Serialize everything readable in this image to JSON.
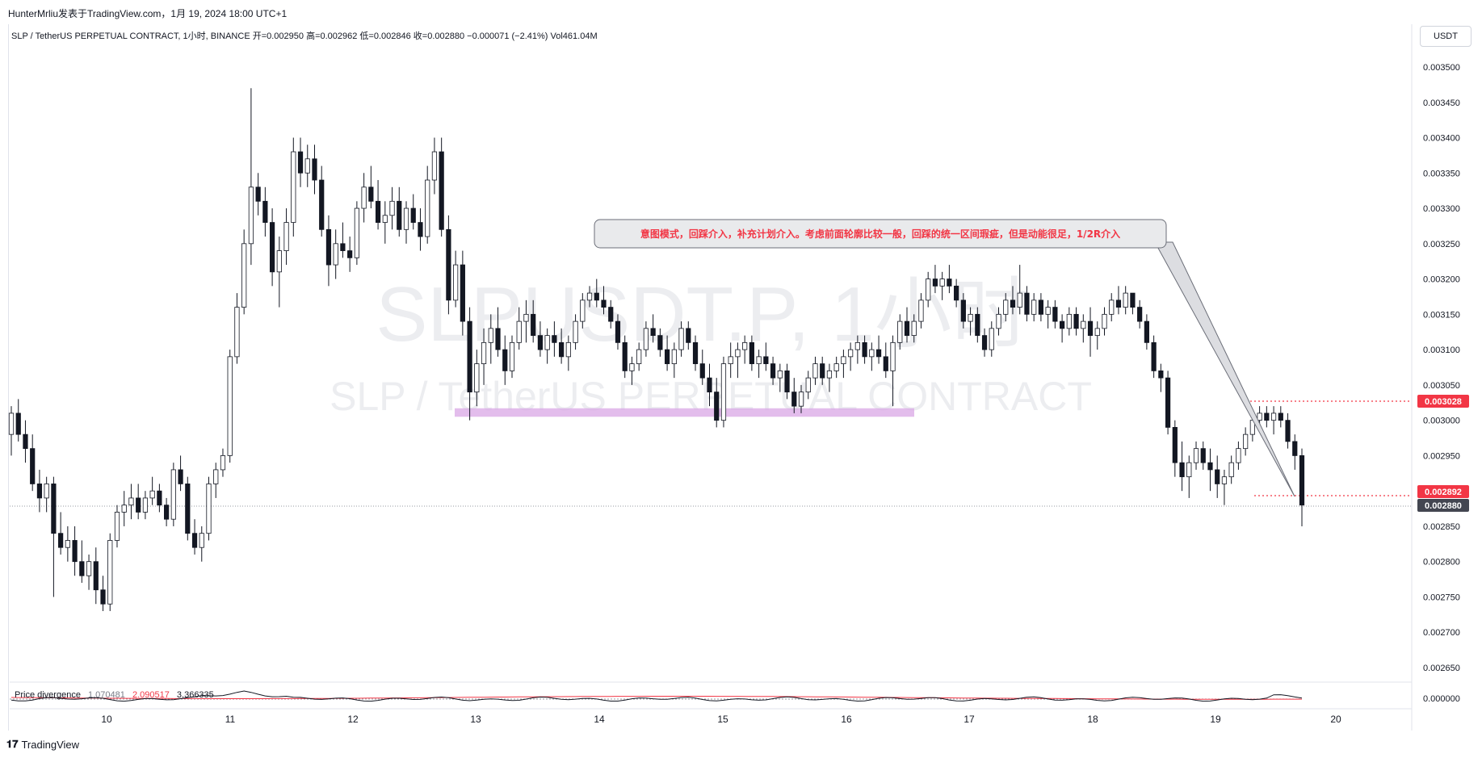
{
  "publisher": "HunterMrliu发表于TradingView.com，1月 19, 2024 18:00 UTC+1",
  "infobar": "SLP / TetherUS PERPETUAL CONTRACT, 1小时, BINANCE  开=0.002950  高=0.002962  低=0.002846  收=0.002880  −0.000071 (−2.41%)  Vol461.04M",
  "unit_button": "USDT",
  "watermark": {
    "line1": "SLPUSDT.P, 1小时",
    "line2": "SLP / TetherUS PERPETUAL CONTRACT"
  },
  "annotation": "意图模式，回踩介入，补充计划介入。考虑前面轮廓比较一般，回踩的统一区间瑕疵，但是动能很足，1/2R介入",
  "price_labels": {
    "resistance": "0.003028",
    "stop": "0.002892",
    "last": "0.002880"
  },
  "indicator": {
    "name": "Price divergence",
    "v1": "1.070481",
    "v2": "2.090517",
    "v3": "3.366335",
    "axis_label": "0.000000"
  },
  "footer": {
    "logo": "TradingView"
  },
  "colors": {
    "up": "#ffffff",
    "down": "#131722",
    "zone": "#d9a7e6",
    "red": "#f23645",
    "callout_fill": "#e9eaec"
  },
  "chart_data": {
    "type": "candlestick",
    "y_ticks": [
      "0.003500",
      "0.003450",
      "0.003400",
      "0.003350",
      "0.003300",
      "0.003250",
      "0.003200",
      "0.003150",
      "0.003100",
      "0.003050",
      "0.003000",
      "0.002950",
      "0.002900",
      "0.002850",
      "0.002800",
      "0.002750",
      "0.002700",
      "0.002650"
    ],
    "ylim": [
      0.00262,
      0.00355
    ],
    "x_ticks": [
      "10",
      "11",
      "12",
      "13",
      "14",
      "15",
      "16",
      "17",
      "18",
      "19",
      "20"
    ],
    "zone": [
      0.003005,
      0.003017
    ],
    "candles": [
      [
        0.00298,
        0.00302,
        0.00295,
        0.00301
      ],
      [
        0.00301,
        0.00303,
        0.00297,
        0.00298
      ],
      [
        0.00298,
        0.003,
        0.00294,
        0.00296
      ],
      [
        0.00296,
        0.00298,
        0.0029,
        0.00291
      ],
      [
        0.00291,
        0.00293,
        0.00287,
        0.00289
      ],
      [
        0.00289,
        0.00292,
        0.00287,
        0.00291
      ],
      [
        0.00291,
        0.00292,
        0.00275,
        0.00284
      ],
      [
        0.00284,
        0.00287,
        0.00281,
        0.00282
      ],
      [
        0.00282,
        0.00285,
        0.0028,
        0.00283
      ],
      [
        0.00283,
        0.00285,
        0.00278,
        0.0028
      ],
      [
        0.0028,
        0.00283,
        0.00277,
        0.00278
      ],
      [
        0.00278,
        0.00281,
        0.00276,
        0.0028
      ],
      [
        0.0028,
        0.00282,
        0.00274,
        0.00276
      ],
      [
        0.00276,
        0.00278,
        0.00273,
        0.00274
      ],
      [
        0.00274,
        0.00284,
        0.00273,
        0.00283
      ],
      [
        0.00283,
        0.00288,
        0.00282,
        0.00287
      ],
      [
        0.00287,
        0.0029,
        0.00285,
        0.00288
      ],
      [
        0.00288,
        0.00291,
        0.00286,
        0.00289
      ],
      [
        0.00289,
        0.00291,
        0.00286,
        0.00287
      ],
      [
        0.00287,
        0.0029,
        0.00286,
        0.00289
      ],
      [
        0.00289,
        0.00292,
        0.00288,
        0.0029
      ],
      [
        0.0029,
        0.00291,
        0.00287,
        0.00288
      ],
      [
        0.00288,
        0.00289,
        0.00285,
        0.00286
      ],
      [
        0.00286,
        0.00294,
        0.00285,
        0.00293
      ],
      [
        0.00293,
        0.00295,
        0.0029,
        0.00291
      ],
      [
        0.00291,
        0.00292,
        0.00283,
        0.00284
      ],
      [
        0.00284,
        0.00286,
        0.00281,
        0.00282
      ],
      [
        0.00282,
        0.00285,
        0.0028,
        0.00284
      ],
      [
        0.00284,
        0.00292,
        0.00283,
        0.00291
      ],
      [
        0.00291,
        0.00294,
        0.00289,
        0.00293
      ],
      [
        0.00293,
        0.00296,
        0.00292,
        0.00295
      ],
      [
        0.00295,
        0.0031,
        0.00294,
        0.00309
      ],
      [
        0.00309,
        0.00318,
        0.00308,
        0.00316
      ],
      [
        0.00316,
        0.00327,
        0.00315,
        0.00325
      ],
      [
        0.00325,
        0.00347,
        0.00322,
        0.00333
      ],
      [
        0.00333,
        0.00335,
        0.00329,
        0.00331
      ],
      [
        0.00331,
        0.00333,
        0.00326,
        0.00328
      ],
      [
        0.00328,
        0.0033,
        0.00319,
        0.00321
      ],
      [
        0.00321,
        0.00326,
        0.00316,
        0.00324
      ],
      [
        0.00324,
        0.0033,
        0.00322,
        0.00328
      ],
      [
        0.00328,
        0.0034,
        0.00326,
        0.00338
      ],
      [
        0.00338,
        0.0034,
        0.00333,
        0.00335
      ],
      [
        0.00335,
        0.00339,
        0.00333,
        0.00337
      ],
      [
        0.00337,
        0.00339,
        0.00332,
        0.00334
      ],
      [
        0.00334,
        0.00336,
        0.00326,
        0.00327
      ],
      [
        0.00327,
        0.00329,
        0.00319,
        0.00322
      ],
      [
        0.00322,
        0.00327,
        0.0032,
        0.00325
      ],
      [
        0.00325,
        0.00328,
        0.00323,
        0.00324
      ],
      [
        0.00324,
        0.00326,
        0.00321,
        0.00323
      ],
      [
        0.00323,
        0.00331,
        0.00322,
        0.0033
      ],
      [
        0.0033,
        0.00335,
        0.00328,
        0.00333
      ],
      [
        0.00333,
        0.00336,
        0.0033,
        0.00331
      ],
      [
        0.00331,
        0.00334,
        0.00327,
        0.00328
      ],
      [
        0.00328,
        0.00331,
        0.00325,
        0.00329
      ],
      [
        0.00329,
        0.00333,
        0.00327,
        0.00331
      ],
      [
        0.00331,
        0.00333,
        0.00326,
        0.00327
      ],
      [
        0.00327,
        0.00331,
        0.00325,
        0.0033
      ],
      [
        0.0033,
        0.00332,
        0.00327,
        0.00328
      ],
      [
        0.00328,
        0.0033,
        0.00324,
        0.00326
      ],
      [
        0.00326,
        0.00336,
        0.00325,
        0.00334
      ],
      [
        0.00334,
        0.0034,
        0.00332,
        0.00338
      ],
      [
        0.00338,
        0.0034,
        0.00326,
        0.00327
      ],
      [
        0.00327,
        0.00329,
        0.00315,
        0.00317
      ],
      [
        0.00317,
        0.00324,
        0.00316,
        0.00322
      ],
      [
        0.00322,
        0.00324,
        0.00312,
        0.00314
      ],
      [
        0.00314,
        0.00316,
        0.003,
        0.00304
      ],
      [
        0.00304,
        0.0031,
        0.00302,
        0.00308
      ],
      [
        0.00308,
        0.00313,
        0.00305,
        0.00311
      ],
      [
        0.00311,
        0.00315,
        0.00308,
        0.00313
      ],
      [
        0.00313,
        0.00316,
        0.00309,
        0.0031
      ],
      [
        0.0031,
        0.00312,
        0.00305,
        0.00307
      ],
      [
        0.00307,
        0.00312,
        0.00306,
        0.00311
      ],
      [
        0.00311,
        0.00316,
        0.0031,
        0.00314
      ],
      [
        0.00314,
        0.00317,
        0.00311,
        0.00315
      ],
      [
        0.00315,
        0.00317,
        0.00311,
        0.00312
      ],
      [
        0.00312,
        0.00314,
        0.00309,
        0.0031
      ],
      [
        0.0031,
        0.00313,
        0.00308,
        0.00312
      ],
      [
        0.00312,
        0.00314,
        0.00309,
        0.00311
      ],
      [
        0.00311,
        0.00313,
        0.00308,
        0.00309
      ],
      [
        0.00309,
        0.00312,
        0.00307,
        0.00311
      ],
      [
        0.00311,
        0.00315,
        0.0031,
        0.00314
      ],
      [
        0.00314,
        0.00318,
        0.00313,
        0.00317
      ],
      [
        0.00317,
        0.00319,
        0.00316,
        0.00318
      ],
      [
        0.00318,
        0.0032,
        0.00316,
        0.00317
      ],
      [
        0.00317,
        0.00319,
        0.00315,
        0.00316
      ],
      [
        0.00316,
        0.00317,
        0.00313,
        0.00314
      ],
      [
        0.00314,
        0.00315,
        0.0031,
        0.00311
      ],
      [
        0.00311,
        0.00312,
        0.00306,
        0.00307
      ],
      [
        0.00307,
        0.00309,
        0.00305,
        0.00308
      ],
      [
        0.00308,
        0.00311,
        0.00307,
        0.0031
      ],
      [
        0.0031,
        0.00314,
        0.00309,
        0.00313
      ],
      [
        0.00313,
        0.00315,
        0.00311,
        0.00312
      ],
      [
        0.00312,
        0.00313,
        0.00309,
        0.0031
      ],
      [
        0.0031,
        0.00312,
        0.00307,
        0.00308
      ],
      [
        0.00308,
        0.00311,
        0.00306,
        0.0031
      ],
      [
        0.0031,
        0.00314,
        0.00309,
        0.00313
      ],
      [
        0.00313,
        0.00314,
        0.0031,
        0.00311
      ],
      [
        0.00311,
        0.00312,
        0.00307,
        0.00308
      ],
      [
        0.00308,
        0.0031,
        0.00305,
        0.00306
      ],
      [
        0.00306,
        0.00308,
        0.00302,
        0.00304
      ],
      [
        0.00304,
        0.00306,
        0.00299,
        0.003
      ],
      [
        0.003,
        0.00309,
        0.00299,
        0.00308
      ],
      [
        0.00308,
        0.00311,
        0.00306,
        0.00309
      ],
      [
        0.00309,
        0.00311,
        0.00306,
        0.0031
      ],
      [
        0.0031,
        0.00312,
        0.00308,
        0.00311
      ],
      [
        0.00311,
        0.00312,
        0.00307,
        0.00308
      ],
      [
        0.00308,
        0.0031,
        0.00306,
        0.00309
      ],
      [
        0.00309,
        0.00311,
        0.00307,
        0.00308
      ],
      [
        0.00308,
        0.00309,
        0.00305,
        0.00306
      ],
      [
        0.00306,
        0.00308,
        0.00304,
        0.00307
      ],
      [
        0.00307,
        0.00308,
        0.00303,
        0.00304
      ],
      [
        0.00304,
        0.00306,
        0.00301,
        0.00302
      ],
      [
        0.00302,
        0.00305,
        0.00301,
        0.00304
      ],
      [
        0.00304,
        0.00307,
        0.00303,
        0.00306
      ],
      [
        0.00306,
        0.00309,
        0.00305,
        0.00308
      ],
      [
        0.00308,
        0.00309,
        0.00305,
        0.00306
      ],
      [
        0.00306,
        0.00308,
        0.00304,
        0.00307
      ],
      [
        0.00307,
        0.00309,
        0.00306,
        0.00308
      ],
      [
        0.00308,
        0.0031,
        0.00306,
        0.00309
      ],
      [
        0.00309,
        0.00311,
        0.00307,
        0.0031
      ],
      [
        0.0031,
        0.00312,
        0.00308,
        0.00311
      ],
      [
        0.00311,
        0.00312,
        0.00308,
        0.00309
      ],
      [
        0.00309,
        0.00311,
        0.00307,
        0.0031
      ],
      [
        0.0031,
        0.00312,
        0.00308,
        0.00309
      ],
      [
        0.00309,
        0.00311,
        0.00306,
        0.00307
      ],
      [
        0.00307,
        0.00312,
        0.00302,
        0.00311
      ],
      [
        0.00311,
        0.00315,
        0.0031,
        0.00314
      ],
      [
        0.00314,
        0.00316,
        0.00311,
        0.00312
      ],
      [
        0.00312,
        0.00315,
        0.00311,
        0.00314
      ],
      [
        0.00314,
        0.00318,
        0.00313,
        0.00317
      ],
      [
        0.00317,
        0.00321,
        0.00316,
        0.0032
      ],
      [
        0.0032,
        0.00322,
        0.00318,
        0.00319
      ],
      [
        0.00319,
        0.00321,
        0.00317,
        0.0032
      ],
      [
        0.0032,
        0.00322,
        0.00318,
        0.00319
      ],
      [
        0.00319,
        0.0032,
        0.00316,
        0.00317
      ],
      [
        0.00317,
        0.00318,
        0.00313,
        0.00314
      ],
      [
        0.00314,
        0.00316,
        0.00312,
        0.00315
      ],
      [
        0.00315,
        0.00316,
        0.00311,
        0.00312
      ],
      [
        0.00312,
        0.00313,
        0.00309,
        0.0031
      ],
      [
        0.0031,
        0.00314,
        0.00309,
        0.00313
      ],
      [
        0.00313,
        0.00316,
        0.00312,
        0.00315
      ],
      [
        0.00315,
        0.00318,
        0.00314,
        0.00317
      ],
      [
        0.00317,
        0.00319,
        0.00315,
        0.00316
      ],
      [
        0.00316,
        0.00322,
        0.00315,
        0.00318
      ],
      [
        0.00318,
        0.00319,
        0.00314,
        0.00315
      ],
      [
        0.00315,
        0.00318,
        0.00314,
        0.00317
      ],
      [
        0.00317,
        0.00318,
        0.00314,
        0.00315
      ],
      [
        0.00315,
        0.00317,
        0.00313,
        0.00316
      ],
      [
        0.00316,
        0.00317,
        0.00313,
        0.00314
      ],
      [
        0.00314,
        0.00315,
        0.00311,
        0.00313
      ],
      [
        0.00313,
        0.00316,
        0.00312,
        0.00315
      ],
      [
        0.00315,
        0.00316,
        0.00312,
        0.00313
      ],
      [
        0.00313,
        0.00315,
        0.00311,
        0.00314
      ],
      [
        0.00314,
        0.00316,
        0.00309,
        0.00312
      ],
      [
        0.00312,
        0.00314,
        0.0031,
        0.00313
      ],
      [
        0.00313,
        0.00316,
        0.00312,
        0.00315
      ],
      [
        0.00315,
        0.00318,
        0.00314,
        0.00317
      ],
      [
        0.00317,
        0.00319,
        0.00315,
        0.00316
      ],
      [
        0.00316,
        0.00319,
        0.00315,
        0.00318
      ],
      [
        0.00318,
        0.00318,
        0.00315,
        0.00316
      ],
      [
        0.00316,
        0.00317,
        0.00313,
        0.00314
      ],
      [
        0.00314,
        0.00315,
        0.0031,
        0.00311
      ],
      [
        0.00311,
        0.00312,
        0.00306,
        0.00307
      ],
      [
        0.00307,
        0.00308,
        0.00304,
        0.00306
      ],
      [
        0.00306,
        0.00307,
        0.00298,
        0.00299
      ],
      [
        0.00299,
        0.003,
        0.00292,
        0.00294
      ],
      [
        0.00294,
        0.00297,
        0.0029,
        0.00292
      ],
      [
        0.00292,
        0.00295,
        0.00289,
        0.00294
      ],
      [
        0.00294,
        0.00297,
        0.00293,
        0.00296
      ],
      [
        0.00296,
        0.00297,
        0.00293,
        0.00294
      ],
      [
        0.00294,
        0.00296,
        0.0029,
        0.00293
      ],
      [
        0.00293,
        0.00295,
        0.00289,
        0.00291
      ],
      [
        0.00291,
        0.00293,
        0.00288,
        0.00292
      ],
      [
        0.00292,
        0.00295,
        0.00291,
        0.00294
      ],
      [
        0.00294,
        0.00297,
        0.00293,
        0.00296
      ],
      [
        0.00296,
        0.00299,
        0.00295,
        0.00298
      ],
      [
        0.00298,
        0.00301,
        0.00297,
        0.003
      ],
      [
        0.003,
        0.00302,
        0.00299,
        0.00301
      ],
      [
        0.00301,
        0.00302,
        0.00299,
        0.003
      ],
      [
        0.003,
        0.00302,
        0.00298,
        0.00301
      ],
      [
        0.00301,
        0.00302,
        0.00299,
        0.003
      ],
      [
        0.003,
        0.00301,
        0.00296,
        0.00297
      ],
      [
        0.00297,
        0.00298,
        0.00293,
        0.00295
      ],
      [
        0.00295,
        0.00296,
        0.00285,
        0.00288
      ]
    ]
  }
}
